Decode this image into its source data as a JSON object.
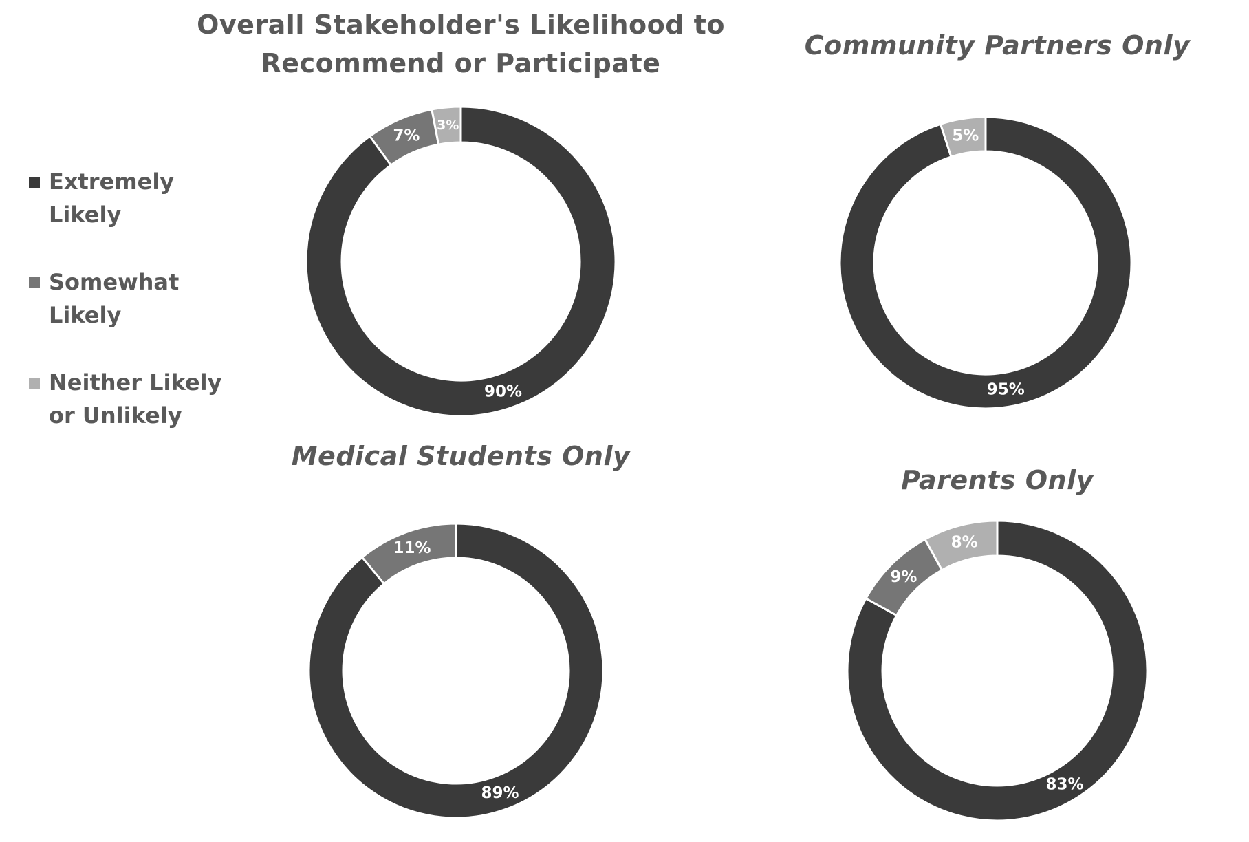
{
  "legend": [
    {
      "label": "Extremely Likely",
      "color": "#3a3a3a"
    },
    {
      "label": "Somewhat Likely",
      "color": "#767676"
    },
    {
      "label": "Neither Likely or Unlikely",
      "color": "#b0b0b0"
    }
  ],
  "chart_data": [
    {
      "type": "pie",
      "title": "Overall Stakeholder's Likelihood to Recommend or Participate",
      "categories": [
        "Extremely Likely",
        "Somewhat Likely",
        "Neither Likely or Unlikely"
      ],
      "values": [
        90,
        7,
        3
      ],
      "labels": [
        "90%",
        "7%",
        "3%"
      ]
    },
    {
      "type": "pie",
      "title": "Community Partners Only",
      "categories": [
        "Extremely Likely",
        "Neither Likely or Unlikely"
      ],
      "values": [
        95,
        5
      ],
      "labels": [
        "95%",
        "5%"
      ]
    },
    {
      "type": "pie",
      "title": "Medical Students Only",
      "categories": [
        "Extremely Likely",
        "Somewhat Likely"
      ],
      "values": [
        89,
        11
      ],
      "labels": [
        "89%",
        "11%"
      ]
    },
    {
      "type": "pie",
      "title": "Parents Only",
      "categories": [
        "Extremely Likely",
        "Somewhat Likely",
        "Neither Likely or Unlikely"
      ],
      "values": [
        83,
        9,
        8
      ],
      "labels": [
        "83%",
        "9%",
        "8%"
      ]
    }
  ]
}
